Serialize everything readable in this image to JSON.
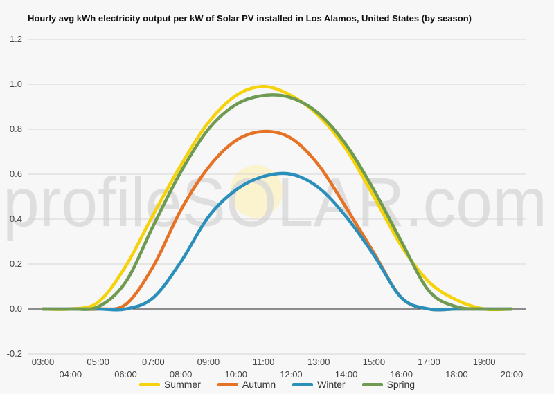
{
  "chart_data": {
    "type": "line",
    "title": "Hourly avg kWh electricity output per kW of Solar PV installed in Los Alamos, United States (by season)",
    "xlabel": "",
    "ylabel": "",
    "ylim": [
      -0.2,
      1.2
    ],
    "yticks": [
      "-0.2",
      "0.0",
      "0.2",
      "0.4",
      "0.6",
      "0.8",
      "1.0",
      "1.2"
    ],
    "categories": [
      "03:00",
      "04:00",
      "05:00",
      "06:00",
      "07:00",
      "08:00",
      "09:00",
      "10:00",
      "11:00",
      "12:00",
      "13:00",
      "14:00",
      "15:00",
      "16:00",
      "17:00",
      "18:00",
      "19:00",
      "20:00"
    ],
    "grid": true,
    "legend_position": "bottom",
    "series": [
      {
        "name": "Summer",
        "color": "#f5d20a",
        "values": [
          0.0,
          0.0,
          0.03,
          0.19,
          0.42,
          0.64,
          0.83,
          0.95,
          0.99,
          0.95,
          0.86,
          0.71,
          0.5,
          0.28,
          0.12,
          0.04,
          0.0,
          0.0
        ]
      },
      {
        "name": "Autumn",
        "color": "#e67226",
        "values": [
          0.0,
          0.0,
          0.0,
          0.02,
          0.19,
          0.44,
          0.63,
          0.75,
          0.79,
          0.76,
          0.64,
          0.45,
          0.25,
          0.05,
          0.0,
          0.0,
          0.0,
          0.0
        ]
      },
      {
        "name": "Winter",
        "color": "#2a8fba",
        "values": [
          0.0,
          0.0,
          0.0,
          0.0,
          0.05,
          0.21,
          0.41,
          0.53,
          0.59,
          0.6,
          0.54,
          0.41,
          0.24,
          0.05,
          0.0,
          0.0,
          0.0,
          0.0
        ]
      },
      {
        "name": "Spring",
        "color": "#6f9a52",
        "values": [
          0.0,
          0.0,
          0.01,
          0.12,
          0.37,
          0.61,
          0.8,
          0.91,
          0.95,
          0.94,
          0.87,
          0.73,
          0.53,
          0.3,
          0.08,
          0.01,
          0.0,
          0.0
        ]
      }
    ]
  }
}
